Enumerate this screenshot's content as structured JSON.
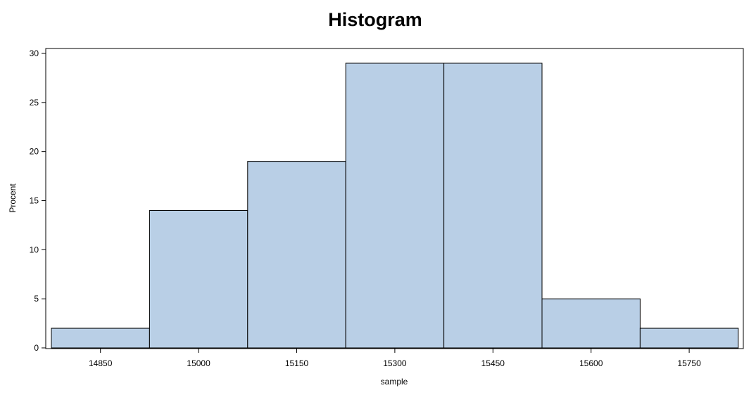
{
  "chart_data": {
    "type": "bar",
    "title": "Histogram",
    "xlabel": "sample",
    "ylabel": "Procent",
    "categories": [
      "14850",
      "15000",
      "15150",
      "15300",
      "15450",
      "15600",
      "15750"
    ],
    "values": [
      2,
      14,
      19,
      29,
      29,
      5,
      2
    ],
    "ylim": [
      0,
      30
    ],
    "yticks": [
      "0",
      "5",
      "10",
      "15",
      "20",
      "25",
      "30"
    ],
    "grid": false,
    "bar_color": "#b9cfe6",
    "edge_color": "#000000"
  }
}
